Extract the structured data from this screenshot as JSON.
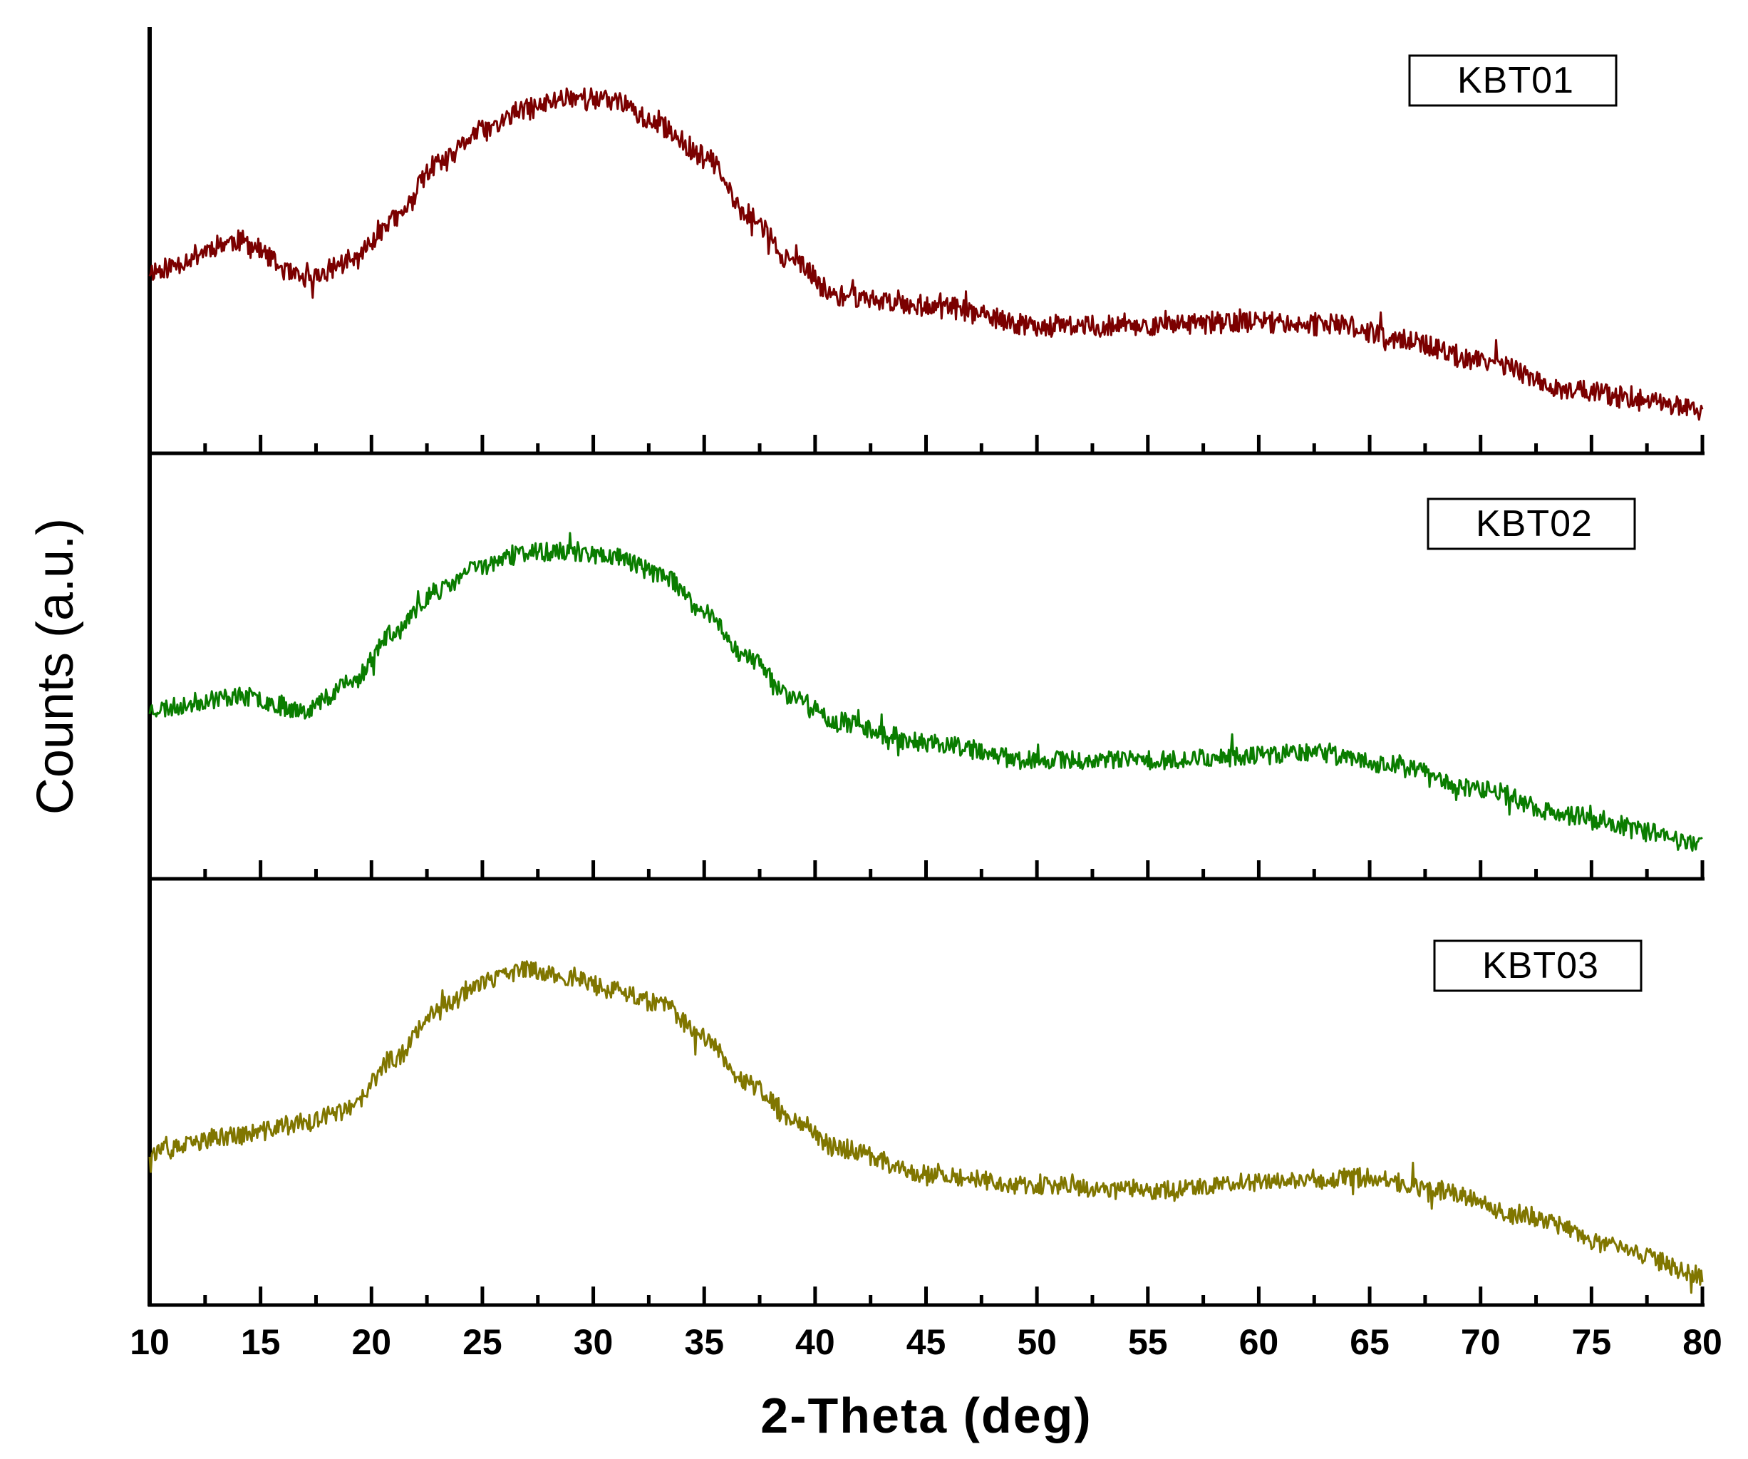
{
  "chart_data": {
    "type": "line",
    "layout": "stacked-panels",
    "xlabel": "2-Theta (deg)",
    "ylabel": "Counts (a.u.)",
    "xlim": [
      10,
      80
    ],
    "ylim": [
      0,
      100
    ],
    "xticks": [
      "10",
      "15",
      "20",
      "25",
      "30",
      "35",
      "40",
      "45",
      "50",
      "55",
      "60",
      "65",
      "70",
      "75",
      "80"
    ],
    "minor_tick_step": 2.5,
    "series": [
      {
        "name": "KBT01",
        "color": "#7b0000",
        "noise": 9,
        "seed": 11,
        "x": [
          10,
          14,
          17,
          19,
          21,
          23,
          25,
          27,
          29,
          31,
          33,
          35,
          37,
          39,
          41,
          45,
          50,
          55,
          60,
          64,
          66,
          70,
          74,
          78,
          80
        ],
        "values": [
          43,
          50,
          41,
          45,
          55,
          68,
          76,
          81,
          84,
          83,
          77,
          70,
          56,
          45,
          37,
          35,
          30,
          30,
          31,
          30,
          27,
          22,
          15,
          12,
          10
        ]
      },
      {
        "name": "KBT02",
        "color": "#0a7d00",
        "noise": 8,
        "seed": 23,
        "x": [
          10,
          14,
          17,
          19,
          21,
          23,
          25,
          27,
          29,
          31,
          33,
          35,
          37,
          39,
          41,
          45,
          50,
          55,
          60,
          62,
          66,
          70,
          74,
          78,
          80
        ],
        "values": [
          40,
          43,
          40,
          46,
          58,
          68,
          74,
          77,
          77,
          76,
          72,
          63,
          52,
          43,
          37,
          32,
          28,
          28,
          29,
          30,
          27,
          21,
          15,
          11,
          8
        ]
      },
      {
        "name": "KBT03",
        "color": "#807600",
        "noise": 8,
        "seed": 37,
        "x": [
          10,
          14,
          17,
          19,
          21,
          23,
          25,
          27,
          29,
          31,
          33,
          35,
          37,
          39,
          41,
          45,
          50,
          55,
          60,
          65,
          68,
          72,
          76,
          80
        ],
        "values": [
          36,
          40,
          43,
          46,
          58,
          70,
          76,
          79,
          77,
          74,
          71,
          63,
          52,
          44,
          37,
          31,
          28,
          27,
          29,
          30,
          27,
          21,
          14,
          7
        ]
      }
    ]
  }
}
